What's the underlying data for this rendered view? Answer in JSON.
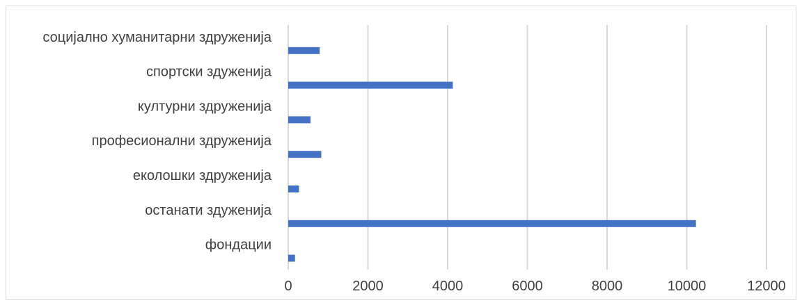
{
  "chart_data": {
    "type": "bar",
    "orientation": "horizontal",
    "categories": [
      "социјално хуманитарни здруженија",
      "спортски здуженија",
      "културни здруженија",
      "професионални здруженија",
      "еколошки здруженија",
      "останати здуженија",
      "фондации"
    ],
    "values": [
      790,
      4130,
      560,
      830,
      270,
      10230,
      170
    ],
    "x_ticks": [
      "0",
      "2000",
      "4000",
      "6000",
      "8000",
      "10000",
      "12000"
    ],
    "xlim": [
      0,
      12000
    ],
    "grid": true,
    "legend": "none",
    "colors": {
      "bar": "#4472c4",
      "grid": "#d9d9d9",
      "text": "#404040",
      "frame": "#d9d9d9"
    }
  }
}
